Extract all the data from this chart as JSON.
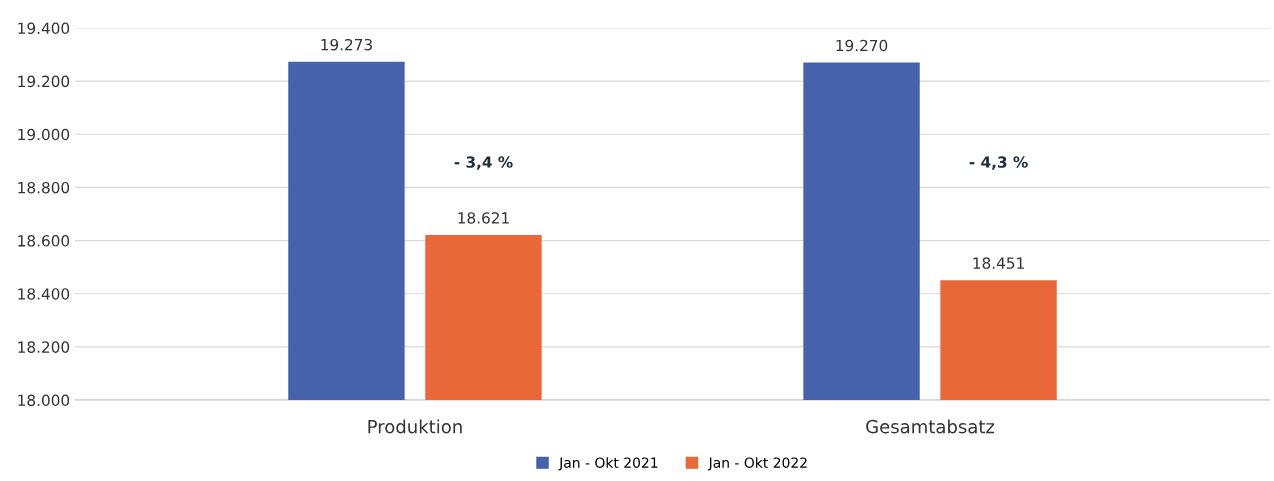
{
  "chart_data": {
    "type": "bar",
    "categories": [
      "Produktion",
      "Gesamtabsatz"
    ],
    "series": [
      {
        "name": "Jan - Okt 2021",
        "color": "#4762ad",
        "values": [
          19273,
          19270
        ],
        "value_labels": [
          "19.273",
          "19.270"
        ]
      },
      {
        "name": "Jan - Okt 2022",
        "color": "#e8683a",
        "values": [
          18621,
          18451
        ],
        "value_labels": [
          "18.621",
          "18.451"
        ]
      }
    ],
    "ylim": [
      18000,
      19400
    ],
    "yticks": [
      {
        "value": 18000,
        "label": "18.000"
      },
      {
        "value": 18200,
        "label": "18.200"
      },
      {
        "value": 18400,
        "label": "18.400"
      },
      {
        "value": 18600,
        "label": "18.600"
      },
      {
        "value": 18800,
        "label": "18.800"
      },
      {
        "value": 19000,
        "label": "19.000"
      },
      {
        "value": 19200,
        "label": "19.200"
      },
      {
        "value": 19400,
        "label": "19.400"
      }
    ],
    "annotations": [
      "- 3,4 %",
      "- 4,3 %"
    ],
    "grid": "y",
    "legend": "bottom"
  }
}
